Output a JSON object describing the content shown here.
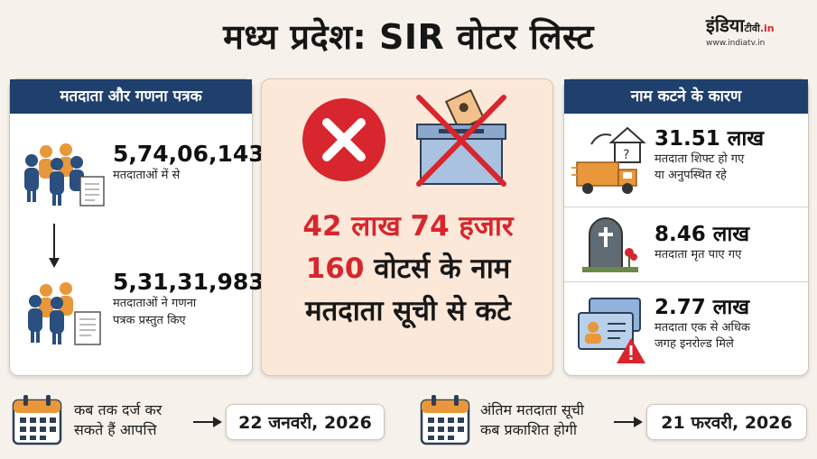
{
  "header": {
    "title": "मध्य प्रदेश: SIR वोटर लिस्ट",
    "logo_main": "इंडिया",
    "logo_tv": "टीवी",
    "logo_in": ".in",
    "logo_url": "www.indiatv.in"
  },
  "left_panel": {
    "heading": "मतदाता और गणना पत्रक",
    "stat1_value": "5,74,06,143",
    "stat1_label": "मतदाताओं में से",
    "stat2_value": "5,31,31,983",
    "stat2_label_line1": "मतदाताओं ने गणना",
    "stat2_label_line2": "पत्रक प्रस्तुत किए"
  },
  "center_panel": {
    "line1": "42 लाख 74 हजार",
    "line2_num": "160",
    "line2_rest": " वोटर्स के नाम",
    "line3": "मतदाता सूची से कटे"
  },
  "right_panel": {
    "heading": "नाम कटने के कारण",
    "reasons": [
      {
        "value": "31.51 लाख",
        "line1": "मतदाता शिफ्ट हो गए",
        "line2": "या अनुपस्थित रहे"
      },
      {
        "value": "8.46 लाख",
        "line1": "मतदाता मृत पाए गए",
        "line2": ""
      },
      {
        "value": "2.77 लाख",
        "line1": "मतदाता एक से अधिक",
        "line2": "जगह इनरोल्ड मिले"
      }
    ]
  },
  "bottom": {
    "q1_line1": "कब तक दर्ज कर",
    "q1_line2": "सकते हैं आपत्ति",
    "date1": "22 जनवरी, 2026",
    "q2_line1": "अंतिम मतदाता सूची",
    "q2_line2": "कब प्रकाशित होगी",
    "date2": "21 फरवरी, 2026"
  },
  "colors": {
    "navy": "#1f3f6d",
    "red": "#d7262d",
    "orange": "#e8973a",
    "background": "#f6f1ea"
  },
  "icons": [
    "voters-group-icon",
    "document-icon",
    "down-arrow-icon",
    "red-cross-icon",
    "ballot-box-icon",
    "house-truck-icon",
    "gravestone-icon",
    "id-cards-warning-icon",
    "calendar-icon",
    "right-arrow-icon"
  ]
}
